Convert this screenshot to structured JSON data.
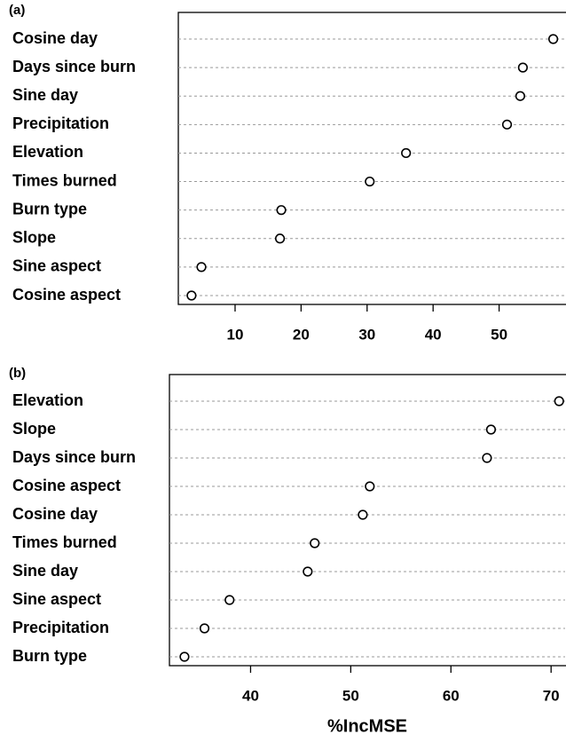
{
  "chart_data": [
    {
      "type": "dot",
      "panel_label": "(a)",
      "categories": [
        "Cosine day",
        "Days since burn",
        "Sine day",
        "Precipitation",
        "Elevation",
        "Times burned",
        "Burn type",
        "Slope",
        "Sine aspect",
        "Cosine aspect"
      ],
      "values": [
        58.2,
        53.6,
        53.2,
        51.2,
        35.9,
        30.4,
        17.0,
        16.8,
        4.9,
        3.4
      ],
      "xlim": [
        1.4,
        60.0
      ],
      "xticks": [
        10,
        20,
        30,
        40,
        50
      ],
      "grid": true
    },
    {
      "type": "dot",
      "panel_label": "(b)",
      "categories": [
        "Elevation",
        "Slope",
        "Days since burn",
        "Cosine aspect",
        "Cosine day",
        "Times burned",
        "Sine day",
        "Sine aspect",
        "Precipitation",
        "Burn type"
      ],
      "values": [
        70.8,
        64.0,
        63.6,
        51.9,
        51.2,
        46.4,
        45.7,
        37.9,
        35.4,
        33.4
      ],
      "xlim": [
        31.9,
        71.4
      ],
      "xticks": [
        40,
        50,
        60,
        70
      ],
      "xlabel": "%IncMSE",
      "grid": true
    }
  ]
}
